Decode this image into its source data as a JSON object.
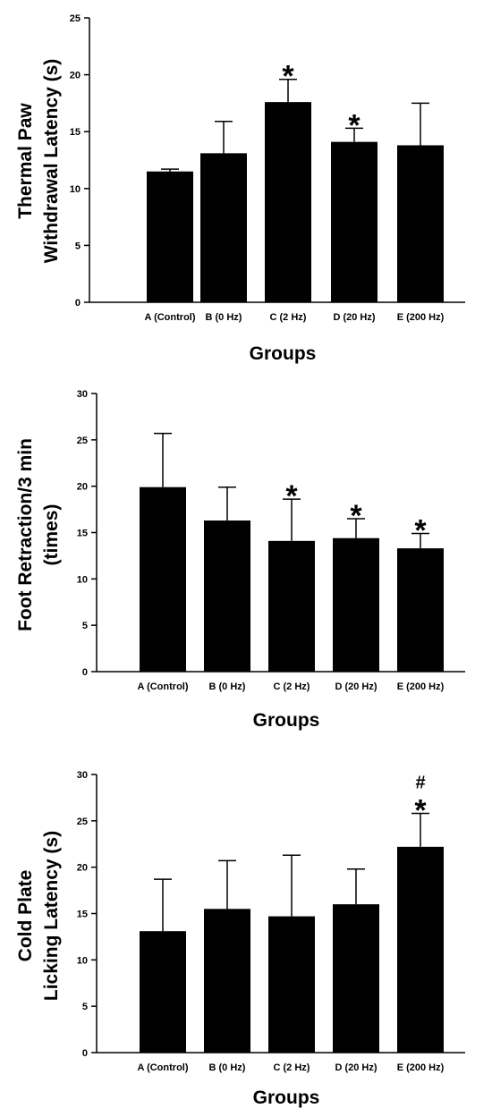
{
  "chart_data": [
    {
      "type": "bar",
      "categories": [
        "A (Control)",
        "B (0 Hz)",
        "C (2 Hz)",
        "D (20 Hz)",
        "E (200 Hz)"
      ],
      "values": [
        11.5,
        13.1,
        17.6,
        14.1,
        13.8
      ],
      "error_upper": [
        0.2,
        2.8,
        2.0,
        1.2,
        3.7
      ],
      "annotations": [
        "",
        "",
        "*",
        "*",
        ""
      ],
      "xlabel": "Groups",
      "ylabel": [
        "Thermal Paw",
        "Withdrawal Latency (s)"
      ],
      "ylim": [
        0,
        25
      ],
      "yticks": [
        0,
        5,
        10,
        15,
        20,
        25
      ],
      "grid": false,
      "bar_color": "#000000"
    },
    {
      "type": "bar",
      "categories": [
        "A (Control)",
        "B (0 Hz)",
        "C (2 Hz)",
        "D (20 Hz)",
        "E (200 Hz)"
      ],
      "values": [
        19.9,
        16.3,
        14.1,
        14.4,
        13.3
      ],
      "error_upper": [
        5.8,
        3.6,
        4.5,
        2.1,
        1.6
      ],
      "annotations": [
        "",
        "",
        "*",
        "*",
        "*"
      ],
      "xlabel": "Groups",
      "ylabel": [
        "Foot Retraction/3 min",
        "(times)"
      ],
      "ylim": [
        0,
        30
      ],
      "yticks": [
        0,
        5,
        10,
        15,
        20,
        25,
        30
      ],
      "grid": false,
      "bar_color": "#000000"
    },
    {
      "type": "bar",
      "categories": [
        "A (Control)",
        "B (0 Hz)",
        "C (2 Hz)",
        "D (20 Hz)",
        "E (200 Hz)"
      ],
      "values": [
        13.1,
        15.5,
        14.7,
        16.0,
        22.2
      ],
      "error_upper": [
        5.6,
        5.2,
        6.6,
        3.8,
        3.6
      ],
      "annotations": [
        "",
        "",
        "",
        "",
        "#\n*"
      ],
      "xlabel": "Groups",
      "ylabel": [
        "Cold Plate",
        "Licking Latency (s)"
      ],
      "ylim": [
        0,
        30
      ],
      "yticks": [
        0,
        5,
        10,
        15,
        20,
        25,
        30
      ],
      "grid": false,
      "bar_color": "#000000"
    }
  ]
}
